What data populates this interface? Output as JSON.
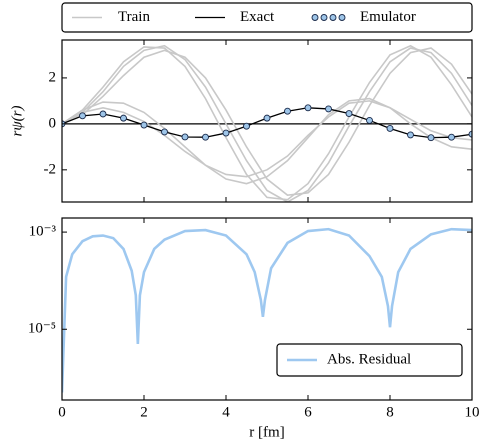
{
  "chart_data": [
    {
      "type": "line",
      "ylabel": "rψ(r)",
      "x": [
        0,
        0.5,
        1,
        1.5,
        2,
        2.5,
        3,
        3.5,
        4,
        4.5,
        5,
        5.5,
        6,
        6.5,
        7,
        7.5,
        8,
        8.5,
        9,
        9.5,
        10
      ],
      "xlim": [
        0,
        10
      ],
      "xticks": [
        0,
        2,
        4,
        6,
        8,
        10
      ],
      "show_xtick_labels": false,
      "ylim": [
        -3.4,
        3.65
      ],
      "yticks": [
        -2,
        0,
        2
      ],
      "hline": 0,
      "train": {
        "name": "Train",
        "color": "#c8c8c8",
        "curves": [
          [
            0,
            0.6,
            1.6,
            2.7,
            3.35,
            3.3,
            2.5,
            1.1,
            -0.6,
            -2.2,
            -3.2,
            -3.3,
            -2.6,
            -1.3,
            0.3,
            1.8,
            3.0,
            3.4,
            2.9,
            1.7,
            0.3
          ],
          [
            0,
            0.4,
            1.2,
            2.1,
            2.9,
            3.2,
            2.9,
            2.0,
            0.6,
            -1.0,
            -2.4,
            -3.1,
            -3.0,
            -2.2,
            -0.8,
            0.8,
            2.2,
            3.1,
            3.3,
            2.6,
            1.3
          ],
          [
            0,
            0.5,
            1.4,
            2.5,
            3.2,
            3.4,
            2.8,
            1.6,
            0.0,
            -1.6,
            -2.9,
            -3.4,
            -2.9,
            -1.7,
            -0.1,
            1.4,
            2.7,
            3.3,
            3.1,
            2.2,
            0.8
          ],
          [
            0,
            0.6,
            0.95,
            0.9,
            0.5,
            -0.2,
            -1.0,
            -1.8,
            -2.4,
            -2.6,
            -2.3,
            -1.6,
            -0.6,
            0.4,
            1.0,
            1.1,
            0.7,
            0.0,
            -0.6,
            -1.0,
            -1.1
          ],
          [
            0,
            0.5,
            0.7,
            0.5,
            0.1,
            -0.5,
            -1.2,
            -1.8,
            -2.2,
            -2.3,
            -2.0,
            -1.4,
            -0.5,
            0.3,
            0.9,
            1.0,
            0.7,
            0.2,
            -0.3,
            -0.6,
            -0.7
          ]
        ]
      },
      "series": [
        {
          "name": "Exact",
          "color": "#000000",
          "values": [
            0,
            0.35,
            0.43,
            0.25,
            -0.05,
            -0.35,
            -0.57,
            -0.58,
            -0.4,
            -0.1,
            0.25,
            0.55,
            0.7,
            0.65,
            0.45,
            0.15,
            -0.2,
            -0.48,
            -0.6,
            -0.58,
            -0.45
          ]
        },
        {
          "name": "Emulator",
          "color": "#9ec5e8",
          "edgecolor": "#1a2a4a",
          "marker": "circle",
          "values": [
            0,
            0.35,
            0.43,
            0.25,
            -0.05,
            -0.35,
            -0.57,
            -0.58,
            -0.4,
            -0.1,
            0.25,
            0.55,
            0.7,
            0.65,
            0.45,
            0.15,
            -0.2,
            -0.48,
            -0.6,
            -0.58,
            -0.45
          ]
        }
      ],
      "legend": "top outside"
    },
    {
      "type": "line",
      "xlabel": "r [fm]",
      "x": [
        0,
        0.1,
        0.25,
        0.5,
        0.75,
        1.0,
        1.25,
        1.5,
        1.7,
        1.8,
        1.85,
        1.9,
        2.0,
        2.25,
        2.5,
        3,
        3.5,
        4,
        4.5,
        4.7,
        4.85,
        4.9,
        4.95,
        5.1,
        5.5,
        6,
        6.5,
        7,
        7.5,
        7.8,
        7.95,
        8.0,
        8.05,
        8.2,
        8.5,
        9,
        9.5,
        10
      ],
      "xlim": [
        0,
        10
      ],
      "xticks": [
        0,
        2,
        4,
        6,
        8,
        10
      ],
      "yscale": "log",
      "ylim": [
        3.5e-07,
        0.00195
      ],
      "yticks": [
        {
          "value": 0.001,
          "label": "10⁻³"
        },
        {
          "value": 1e-05,
          "label": "10⁻⁵"
        }
      ],
      "series": [
        {
          "name": "Abs. Residual",
          "color": "#9ec8f0",
          "values": [
            5e-07,
            0.00012,
            0.00035,
            0.00065,
            0.00082,
            0.00085,
            0.00075,
            0.00045,
            0.00016,
            5e-05,
            5e-06,
            5e-05,
            0.00015,
            0.00045,
            0.0007,
            0.00105,
            0.0011,
            0.00085,
            0.00035,
            0.00015,
            4e-05,
            1.8e-05,
            4e-05,
            0.00018,
            0.0006,
            0.00105,
            0.00115,
            0.00085,
            0.00032,
            0.00012,
            3e-05,
            1.1e-05,
            3e-05,
            0.00015,
            0.00045,
            0.0009,
            0.00115,
            0.0011
          ]
        }
      ],
      "legend": "lower right"
    }
  ]
}
